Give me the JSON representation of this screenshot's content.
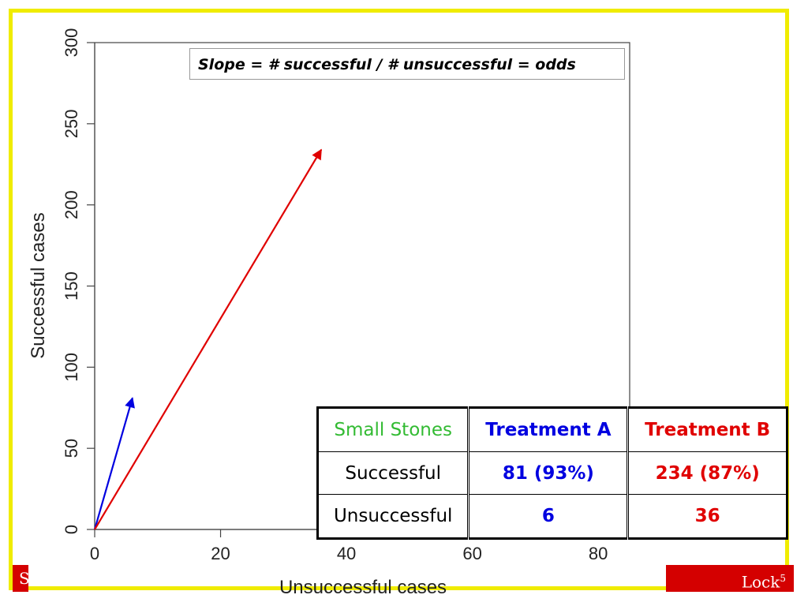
{
  "chart_data": {
    "type": "line",
    "xlabel": "Unsuccessful cases",
    "ylabel": "Successful cases",
    "xlim": [
      0,
      85
    ],
    "ylim": [
      0,
      300
    ],
    "x_ticks": [
      "0",
      "20",
      "40",
      "60",
      "80"
    ],
    "y_ticks": [
      "0",
      "50",
      "100",
      "150",
      "200",
      "250",
      "300"
    ],
    "annotation": "Slope = # successful / # unsuccessful = odds",
    "series": [
      {
        "color": "#0000e0",
        "points": [
          [
            0,
            0
          ],
          [
            6,
            81
          ]
        ],
        "style": "arrow"
      },
      {
        "color": "#e00000",
        "points": [
          [
            0,
            0
          ],
          [
            36,
            234
          ]
        ],
        "style": "arrow"
      }
    ],
    "grid": false
  },
  "table": {
    "corner": "Small Stones",
    "col_a": "Treatment A",
    "col_b": "Treatment B",
    "rows": [
      {
        "label": "Successful",
        "a": "81 (93%)",
        "b": "234 (87%)"
      },
      {
        "label": "Unsuccessful",
        "a": "6",
        "b": "36"
      }
    ]
  },
  "footer": {
    "left_text": "S",
    "right_text": "Lock",
    "right_sup": "5"
  },
  "colors": {
    "frame": "#f0ec00",
    "footer": "#d40000",
    "treatment_a": "#0000e0",
    "treatment_b": "#e00000",
    "corner_label": "#33bb33"
  }
}
